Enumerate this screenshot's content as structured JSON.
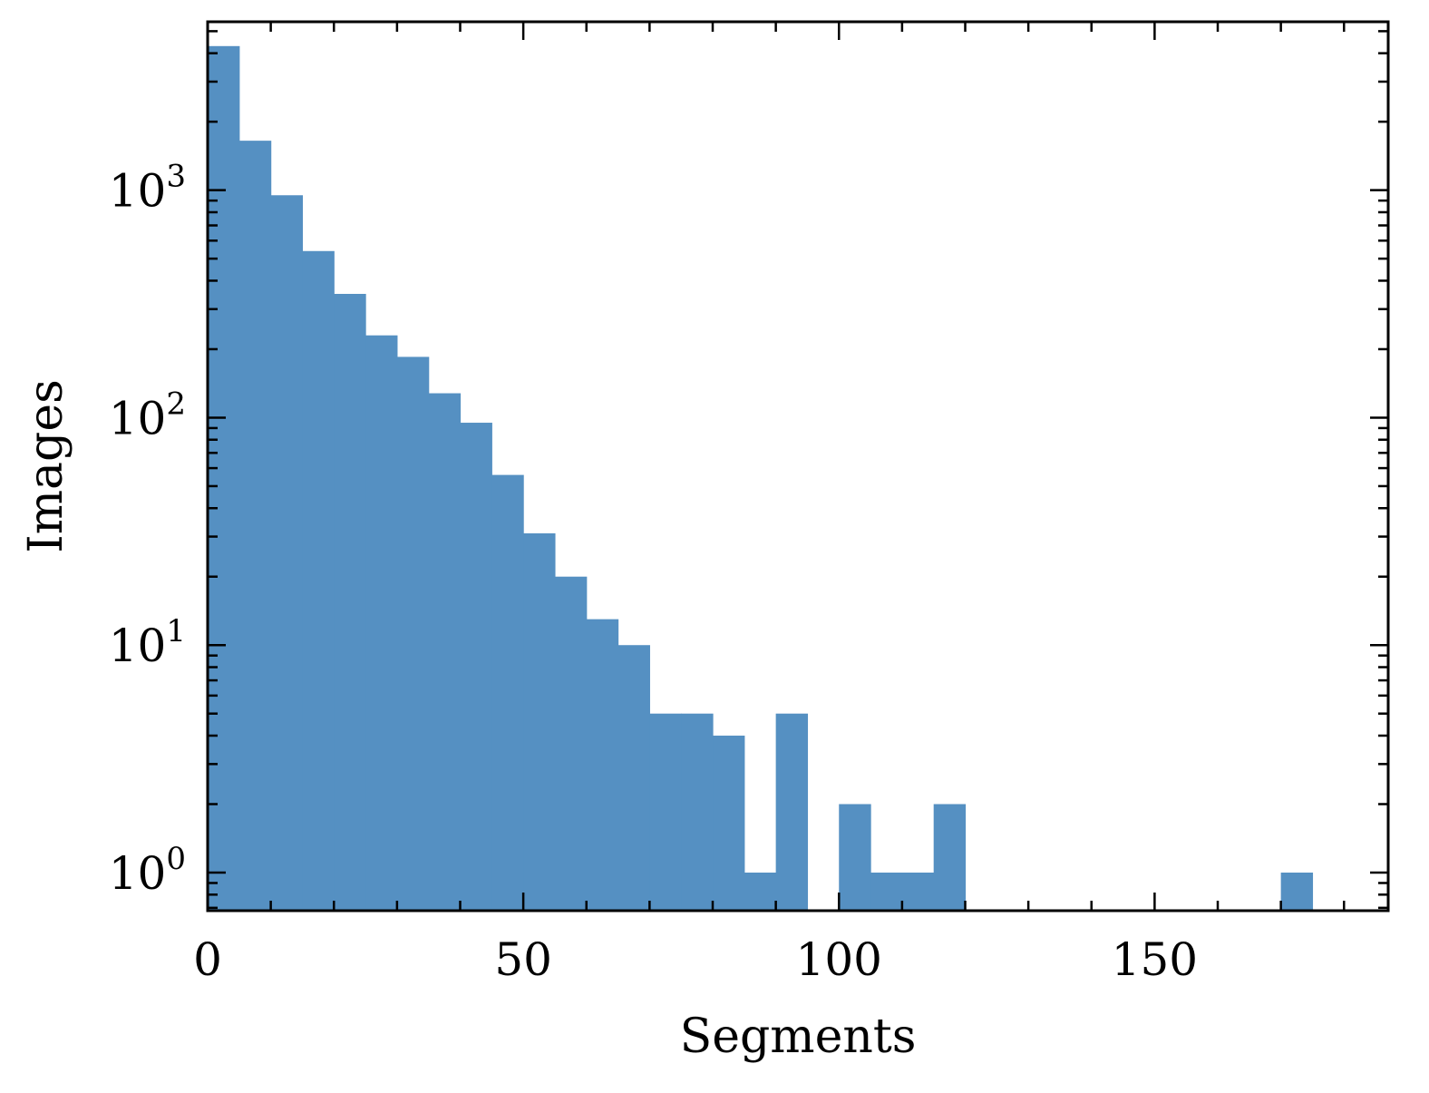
{
  "chart_data": {
    "type": "bar",
    "histogram": true,
    "xlabel": "Segments",
    "ylabel": "Images",
    "xlim": [
      0,
      187
    ],
    "ylim": [
      0.68,
      5500
    ],
    "y_scale": "log",
    "grid": false,
    "bar_color": "#5590c2",
    "bin_width": 5,
    "bins": [
      {
        "x0": 0,
        "x1": 5,
        "count": 4300
      },
      {
        "x0": 5,
        "x1": 10,
        "count": 1650
      },
      {
        "x0": 10,
        "x1": 15,
        "count": 950
      },
      {
        "x0": 15,
        "x1": 20,
        "count": 540
      },
      {
        "x0": 20,
        "x1": 25,
        "count": 350
      },
      {
        "x0": 25,
        "x1": 30,
        "count": 230
      },
      {
        "x0": 30,
        "x1": 35,
        "count": 185
      },
      {
        "x0": 35,
        "x1": 40,
        "count": 128
      },
      {
        "x0": 40,
        "x1": 45,
        "count": 95
      },
      {
        "x0": 45,
        "x1": 50,
        "count": 56
      },
      {
        "x0": 50,
        "x1": 55,
        "count": 31
      },
      {
        "x0": 55,
        "x1": 60,
        "count": 20
      },
      {
        "x0": 60,
        "x1": 65,
        "count": 13
      },
      {
        "x0": 65,
        "x1": 70,
        "count": 10
      },
      {
        "x0": 70,
        "x1": 75,
        "count": 5
      },
      {
        "x0": 75,
        "x1": 80,
        "count": 5
      },
      {
        "x0": 80,
        "x1": 85,
        "count": 4
      },
      {
        "x0": 85,
        "x1": 90,
        "count": 1
      },
      {
        "x0": 90,
        "x1": 95,
        "count": 5
      },
      {
        "x0": 95,
        "x1": 100,
        "count": 0
      },
      {
        "x0": 100,
        "x1": 105,
        "count": 2
      },
      {
        "x0": 105,
        "x1": 110,
        "count": 1
      },
      {
        "x0": 110,
        "x1": 115,
        "count": 1
      },
      {
        "x0": 115,
        "x1": 120,
        "count": 2
      },
      {
        "x0": 120,
        "x1": 125,
        "count": 0
      },
      {
        "x0": 125,
        "x1": 130,
        "count": 0
      },
      {
        "x0": 130,
        "x1": 135,
        "count": 0
      },
      {
        "x0": 135,
        "x1": 140,
        "count": 0
      },
      {
        "x0": 140,
        "x1": 145,
        "count": 0
      },
      {
        "x0": 145,
        "x1": 150,
        "count": 0
      },
      {
        "x0": 150,
        "x1": 155,
        "count": 0
      },
      {
        "x0": 155,
        "x1": 160,
        "count": 0
      },
      {
        "x0": 160,
        "x1": 165,
        "count": 0
      },
      {
        "x0": 165,
        "x1": 170,
        "count": 0
      },
      {
        "x0": 170,
        "x1": 175,
        "count": 1
      }
    ],
    "x_ticks": [
      "0",
      "50",
      "100",
      "150"
    ],
    "x_tick_values": [
      0,
      50,
      100,
      150
    ],
    "y_ticks": [
      {
        "base": "10",
        "exp": "0",
        "value": 1
      },
      {
        "base": "10",
        "exp": "1",
        "value": 10
      },
      {
        "base": "10",
        "exp": "2",
        "value": 100
      },
      {
        "base": "10",
        "exp": "3",
        "value": 1000
      }
    ]
  }
}
